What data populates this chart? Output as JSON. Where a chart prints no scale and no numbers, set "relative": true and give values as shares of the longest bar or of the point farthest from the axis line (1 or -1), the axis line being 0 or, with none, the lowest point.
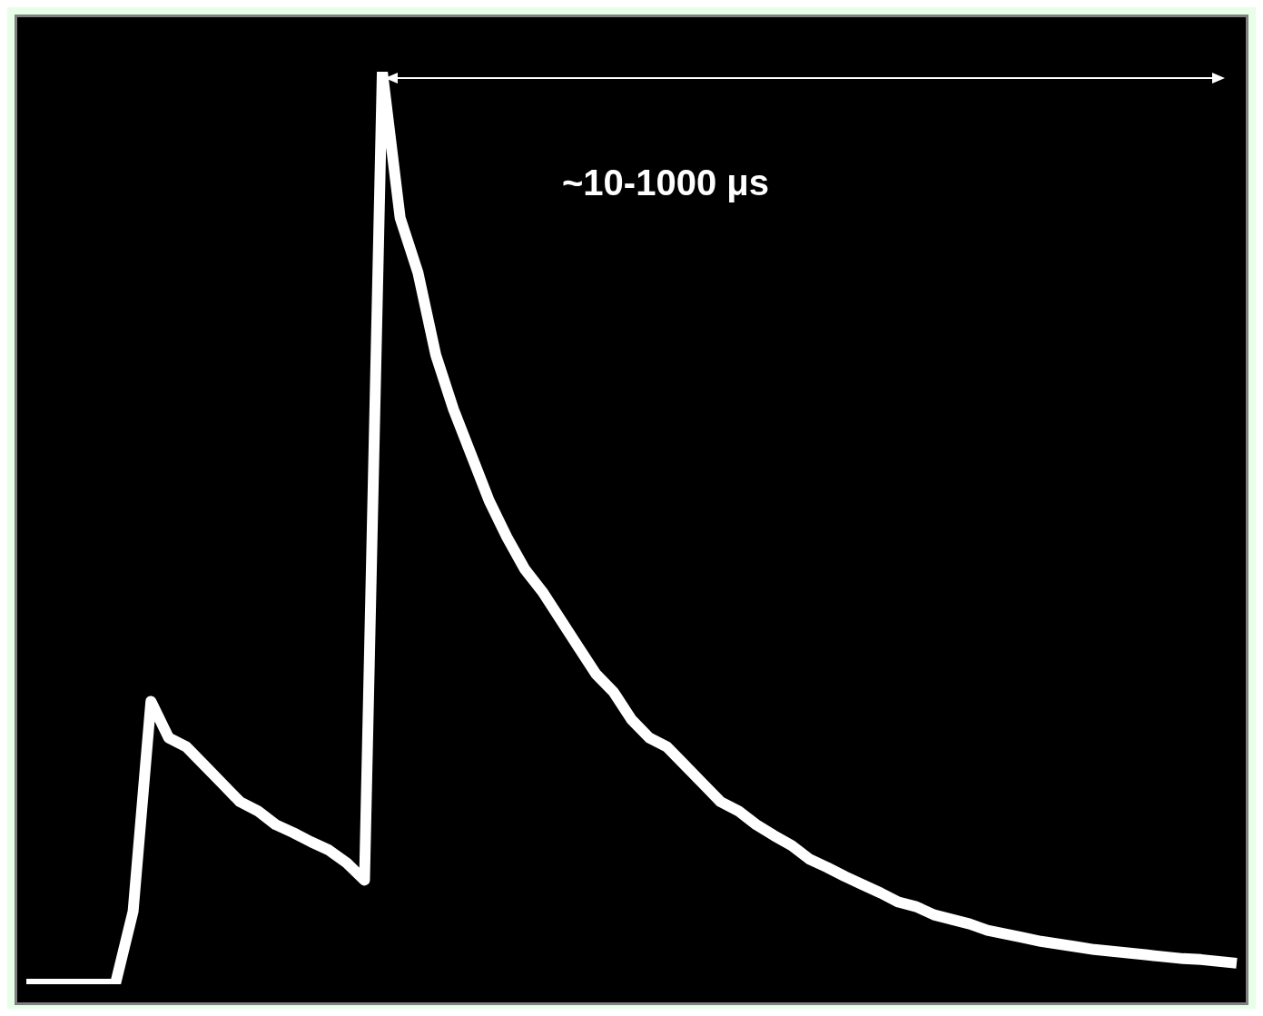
{
  "chart_data": {
    "type": "line",
    "relative": true,
    "marker": "none",
    "annotations": [
      "~10-1000 μs"
    ],
    "categories": [
      null,
      null,
      null,
      null,
      null,
      null,
      null,
      null,
      null,
      null,
      null,
      null,
      null,
      null,
      null,
      null,
      null,
      null,
      null,
      null,
      null,
      null,
      null,
      null,
      null,
      null,
      null,
      null,
      null,
      null,
      null,
      null,
      null,
      null,
      null,
      null,
      null,
      null,
      null,
      null,
      null,
      null,
      null,
      null,
      null,
      null,
      null,
      null,
      null,
      null,
      null,
      null,
      null,
      null,
      null,
      null,
      null,
      null,
      null,
      null,
      null,
      null,
      null,
      null,
      null,
      null,
      null,
      null,
      null
    ],
    "series": [
      {
        "color": "#ffffff",
        "values": [
          0,
          0,
          0,
          0,
          0,
          0,
          0.08,
          0.31,
          0.27,
          0.26,
          0.24,
          0.22,
          0.2,
          0.19,
          0.175,
          0.166,
          0.156,
          0.147,
          0.133,
          0.114,
          1,
          0.84,
          0.78,
          0.69,
          0.63,
          0.58,
          0.53,
          0.49,
          0.455,
          0.43,
          0.4,
          0.37,
          0.34,
          0.32,
          0.29,
          0.27,
          0.26,
          0.24,
          0.22,
          0.2,
          0.19,
          0.175,
          0.163,
          0.152,
          0.137,
          0.128,
          0.118,
          0.109,
          0.1,
          0.09,
          0.085,
          0.076,
          0.071,
          0.066,
          0.059,
          0.055,
          0.051,
          0.047,
          0.044,
          0.041,
          0.038,
          0.036,
          0.034,
          0.032,
          0.03,
          0.028,
          0.027,
          0.025,
          0.023
        ]
      }
    ]
  }
}
